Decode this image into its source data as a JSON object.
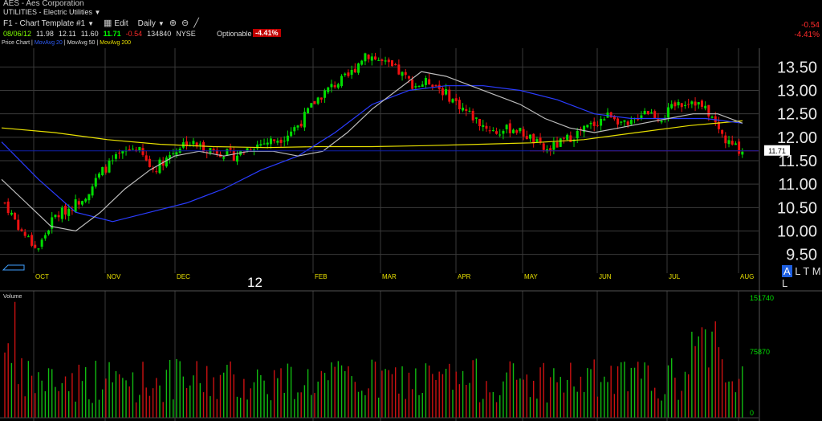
{
  "header": {
    "symbol_line": "AES - Aes Corporation",
    "sector_line": "UTILITIES - Electric Utilities",
    "chart_template": "F1 - Chart Template #1",
    "edit_label": "Edit",
    "period_label": "Daily",
    "quote": {
      "date": "08/06/12",
      "open": "11.98",
      "high": "12.11",
      "low": "11.60",
      "last": "11.71",
      "change": "-0.54",
      "volume": "134840",
      "exchange": "NYSE"
    },
    "optionable_label": "Optionable",
    "pct_change": "-4.41%",
    "right_change": "-0.54",
    "right_pct": "-4.41%"
  },
  "legend": {
    "price_chart": "Price Chart",
    "sep": "|",
    "ma20": "MovAvg 20",
    "ma50": "MovAvg 50",
    "ma200": "MovAvg 200"
  },
  "ticker_box": {
    "hl": "A",
    "rest": "L T M L"
  },
  "last_price_label": "11.71",
  "year_label": "12",
  "volume_label": "Volume",
  "colors": {
    "up": "#00dd00",
    "down": "#ee1111",
    "ma20": "#bdbdbd",
    "ma50": "#2a3cff",
    "ma200": "#e8e000",
    "grid": "#3a3a3a",
    "month_label": "#e8e000",
    "price_line": "#cc0000"
  },
  "chart_data": [
    {
      "type": "candlestick",
      "title": "",
      "x_labels": [
        "OCT",
        "NOV",
        "DEC",
        "FEB",
        "MAR",
        "APR",
        "MAY",
        "JUN",
        "JUL",
        "AUG"
      ],
      "y_ticks": [
        "13.50",
        "13.00",
        "12.50",
        "12.00",
        "11.50",
        "11.00",
        "10.50",
        "10.00",
        "9.50"
      ],
      "ylim": [
        9.1,
        13.9
      ],
      "last_price": 11.71,
      "ohlc_close_approx": [
        10.6,
        10.0,
        9.6,
        10.3,
        10.5,
        10.8,
        11.3,
        11.6,
        11.8,
        11.3,
        11.6,
        11.9,
        11.8,
        11.7,
        11.6,
        11.8,
        11.9,
        12.0,
        12.3,
        12.8,
        13.1,
        13.3,
        13.8,
        13.6,
        13.4,
        13.1,
        13.2,
        12.9,
        12.6,
        12.3,
        12.1,
        12.2,
        12.0,
        11.7,
        11.9,
        12.1,
        12.3,
        12.5,
        12.2,
        12.6,
        12.4,
        12.7,
        12.8,
        12.5,
        11.9,
        11.71
      ],
      "ma20_approx": [
        11.1,
        10.6,
        10.1,
        10.0,
        10.4,
        10.9,
        11.3,
        11.6,
        11.7,
        11.6,
        11.7,
        11.7,
        11.6,
        11.7,
        12.1,
        12.6,
        13.0,
        13.4,
        13.3,
        13.1,
        12.9,
        12.7,
        12.4,
        12.2,
        12.1,
        12.2,
        12.3,
        12.4,
        12.5,
        12.5,
        12.3
      ],
      "ma50_approx": [
        11.9,
        11.1,
        10.4,
        10.2,
        10.4,
        10.6,
        10.9,
        11.3,
        11.6,
        12.1,
        12.7,
        13.0,
        13.1,
        13.1,
        13.0,
        12.8,
        12.5,
        12.4,
        12.4,
        12.4,
        12.3
      ],
      "ma200_approx": [
        12.2,
        12.1,
        11.95,
        11.85,
        11.8,
        11.78,
        11.8,
        11.8,
        11.82,
        11.85,
        11.88,
        11.95,
        12.1,
        12.25,
        12.35
      ]
    },
    {
      "type": "bar",
      "title": "Volume",
      "y_ticks": [
        "151740",
        "75870",
        "0"
      ],
      "ylim": [
        0,
        151740
      ]
    }
  ]
}
